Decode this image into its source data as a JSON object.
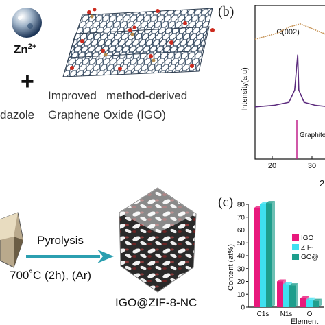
{
  "top_left": {
    "zn_label": "Zn",
    "zn_superscript": "2+",
    "plus_sign": "+",
    "imidazole_fragment": "dazole",
    "igo_line1": "Improved   method-derived",
    "igo_line2": "Graphene Oxide (IGO)"
  },
  "panel_b": {
    "label": "(b)",
    "peak_label": "C(002)",
    "ylabel": "Intensity(a.u)",
    "reference_label": "Graphite",
    "x_ticks": [
      "20",
      "30"
    ],
    "x_fragment": "2"
  },
  "bottom_left": {
    "arrow_top_label": "Pyrolysis",
    "arrow_bottom_label": "700˚C (2h), (Ar)",
    "product_label": "IGO@ZIF-8-NC"
  },
  "panel_c": {
    "label": "(c)",
    "ylabel": "Content (at%)",
    "xlabel_fragment": "Element",
    "legend": [
      "IGO",
      "ZIF-",
      "GO@"
    ],
    "colors": [
      "#e8197c",
      "#3fe0f0",
      "#1e9e8c"
    ]
  },
  "chart_data": [
    {
      "type": "line",
      "xlabel": "2",
      "ylabel": "Intensity(a.u)",
      "x_ticks": [
        20,
        30
      ],
      "series": [
        {
          "color": "#c8965a",
          "points": [
            [
              15,
              0.78
            ],
            [
              18,
              0.8
            ],
            [
              21,
              0.82
            ],
            [
              24,
              0.86
            ],
            [
              27,
              0.88
            ],
            [
              30,
              0.85
            ],
            [
              33,
              0.82
            ],
            [
              35,
              0.8
            ]
          ]
        },
        {
          "color": "#5b2a7d",
          "points": [
            [
              15,
              0.34
            ],
            [
              20,
              0.35
            ],
            [
              24,
              0.37
            ],
            [
              25.5,
              0.45
            ],
            [
              26.3,
              0.68
            ],
            [
              26.6,
              0.45
            ],
            [
              28,
              0.37
            ],
            [
              31,
              0.35
            ],
            [
              35,
              0.34
            ]
          ]
        }
      ],
      "reference_lines": [
        26.5
      ]
    },
    {
      "type": "bar",
      "ylabel": "Content (at%)",
      "ylim": [
        0,
        80
      ],
      "yticks": [
        0,
        10,
        20,
        30,
        40,
        50,
        60,
        70,
        80
      ],
      "categories": [
        "C1s",
        "N1s",
        "O"
      ],
      "series": [
        {
          "name": "IGO",
          "color": "#e8197c",
          "values": [
            77,
            20,
            7
          ]
        },
        {
          "name": "ZIF-",
          "color": "#3fe0f0",
          "values": [
            80,
            18,
            6
          ]
        },
        {
          "name": "GO@",
          "color": "#1e9e8c",
          "values": [
            81,
            17,
            5
          ]
        }
      ]
    }
  ]
}
